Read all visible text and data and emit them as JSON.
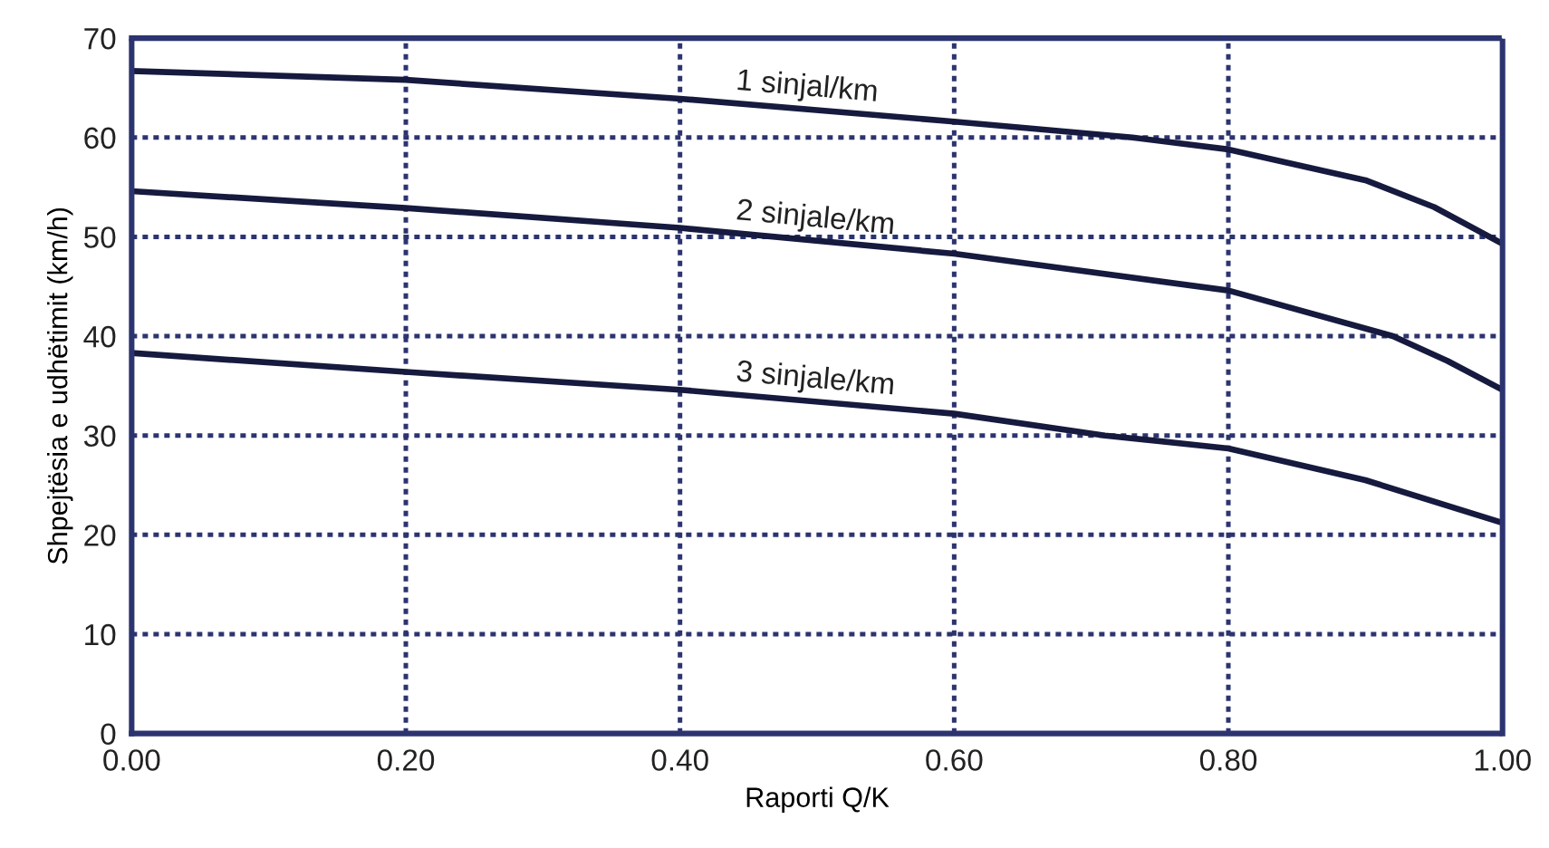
{
  "chart_data": {
    "type": "line",
    "xlabel": "Raporti Q/K",
    "ylabel": "Shpejtësia e udhëtimit (km/h)",
    "xlim": [
      0,
      1
    ],
    "ylim": [
      0,
      70
    ],
    "xticks": [
      {
        "value": 0,
        "label": "0.00"
      },
      {
        "value": 0.2,
        "label": "0.20"
      },
      {
        "value": 0.4,
        "label": "0.40"
      },
      {
        "value": 0.6,
        "label": "0.60"
      },
      {
        "value": 0.8,
        "label": "0.80"
      },
      {
        "value": 1,
        "label": "1.00"
      }
    ],
    "yticks": [
      0,
      10,
      20,
      30,
      40,
      50,
      60,
      70
    ],
    "grid": true,
    "line_style": "solid",
    "marker": "none",
    "series": [
      {
        "name": "1 sinjal/km",
        "color": "#161a3e",
        "x": [
          0,
          0.2,
          0.4,
          0.6,
          0.73,
          0.8,
          0.9,
          0.95,
          1.0
        ],
        "values": [
          66.7,
          65.8,
          63.9,
          61.6,
          60,
          58.8,
          55.7,
          53,
          49.3
        ]
      },
      {
        "name": "2 sinjale/km",
        "color": "#161a3e",
        "x": [
          0,
          0.2,
          0.4,
          0.6,
          0.8,
          0.92,
          0.96,
          1.0
        ],
        "values": [
          54.6,
          52.9,
          50.9,
          48.3,
          44.6,
          40,
          37.5,
          34.6
        ]
      },
      {
        "name": "3 sinjale/km",
        "color": "#161a3e",
        "x": [
          0,
          0.2,
          0.4,
          0.6,
          0.71,
          0.8,
          0.9,
          1.0
        ],
        "values": [
          38.3,
          36.4,
          34.6,
          32.2,
          30,
          28.7,
          25.5,
          21.2
        ]
      }
    ]
  }
}
